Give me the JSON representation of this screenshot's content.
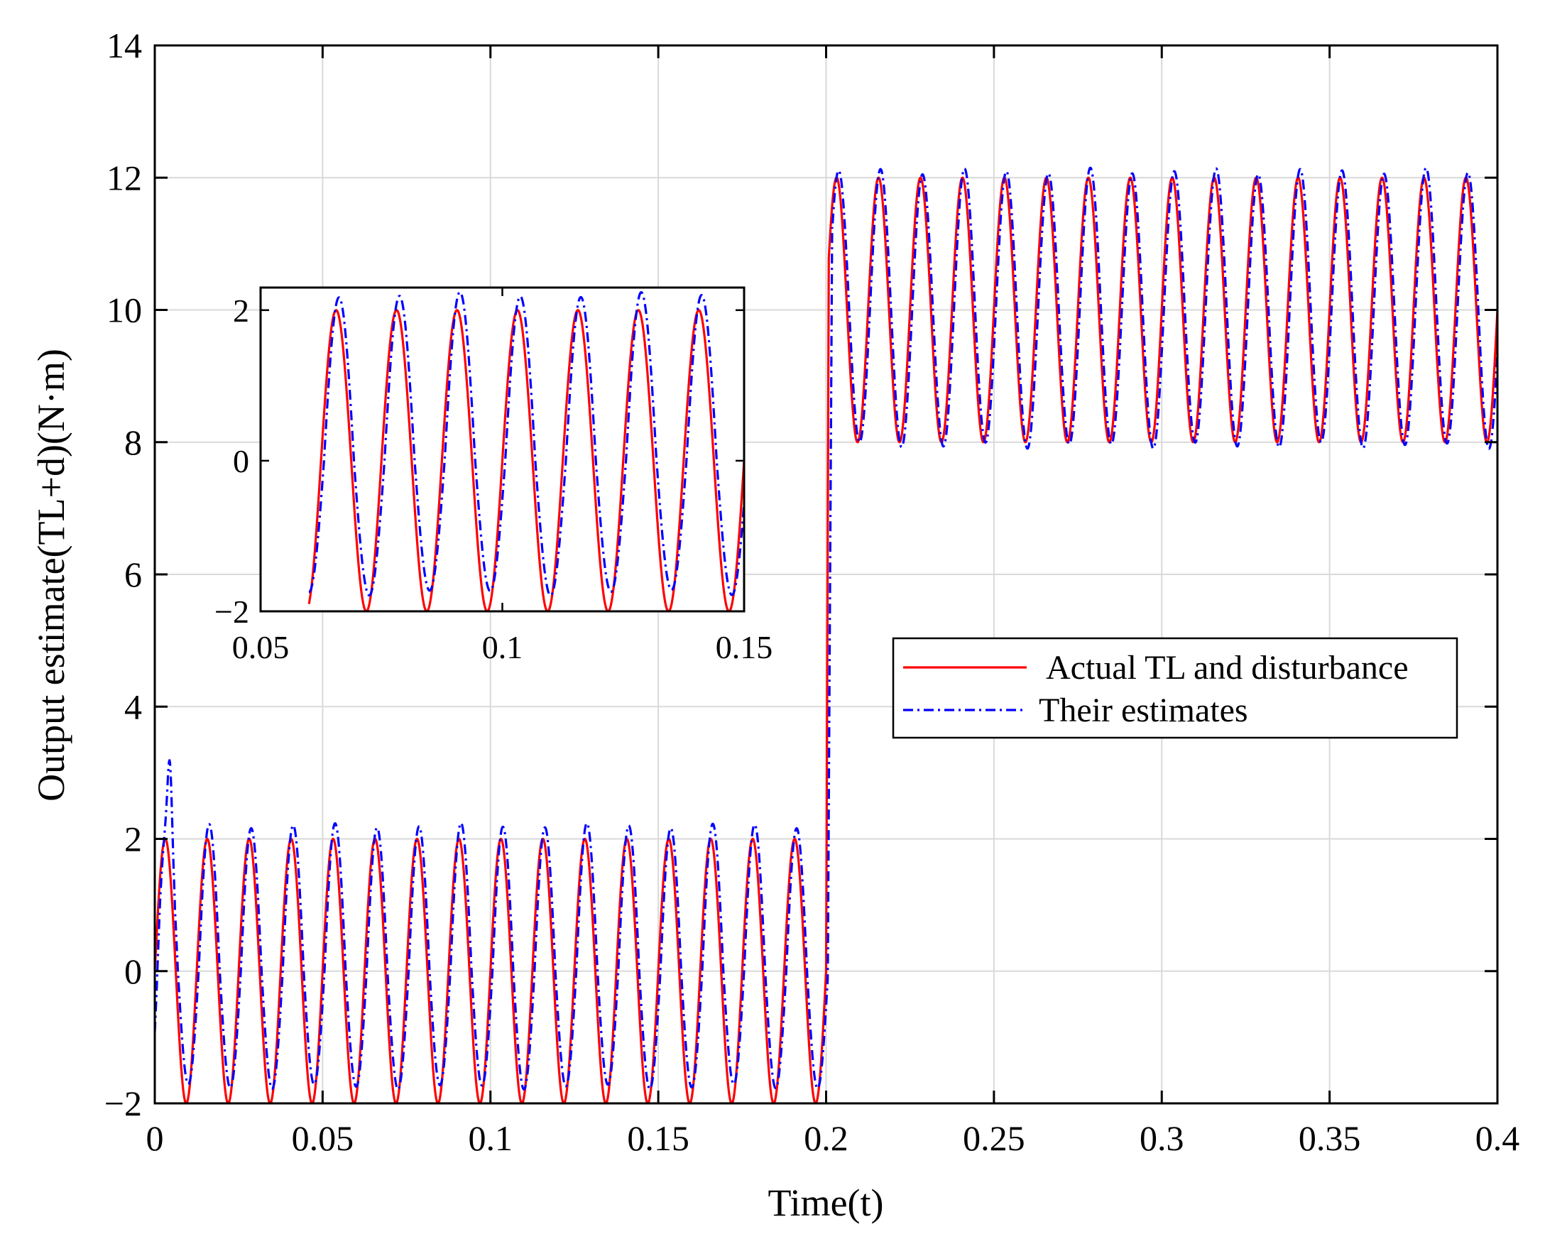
{
  "chart_data": [
    {
      "id": "main",
      "type": "line",
      "xlabel": "Time(t)",
      "ylabel": "Output estimate(TL+d)(N·m)",
      "xlim": [
        0,
        0.4
      ],
      "ylim": [
        -2,
        14
      ],
      "xticks": [
        0,
        0.05,
        0.1,
        0.15,
        0.2,
        0.25,
        0.3,
        0.35,
        0.4
      ],
      "xtick_labels": [
        "0",
        "0.05",
        "0.1",
        "0.15",
        "0.2",
        "0.25",
        "0.3",
        "0.35",
        "0.4"
      ],
      "yticks": [
        -2,
        0,
        2,
        4,
        6,
        8,
        10,
        12,
        14
      ],
      "ytick_labels": [
        "−2",
        "0",
        "2",
        "4",
        "6",
        "8",
        "10",
        "12",
        "14"
      ],
      "grid": true,
      "legend_position": "center-right",
      "step_time": 0.2,
      "series": [
        {
          "name": "Actual TL and disturbance",
          "style": "solid",
          "color": "#ff0000",
          "description_values": {
            "before_step_amplitude": 2,
            "before_step_offset": 0,
            "after_step_amplitude": 2,
            "after_step_offset": 10,
            "period": 0.0125
          }
        },
        {
          "name": "Their estimates",
          "style": "dash-dot",
          "color": "#0000ff",
          "description_values": {
            "before_step_peak": 2.2,
            "before_step_trough": -1.7,
            "after_step_peak": 12.1,
            "after_step_trough": 7.95,
            "initial_spike": 3.0,
            "period": 0.0125
          }
        }
      ]
    },
    {
      "id": "inset",
      "type": "line",
      "xlim": [
        0.05,
        0.15
      ],
      "ylim": [
        -2,
        2.3
      ],
      "xticks": [
        0.05,
        0.1,
        0.15
      ],
      "xtick_labels": [
        "0.05",
        "0.1",
        "0.15"
      ],
      "yticks": [
        -2,
        0,
        2
      ],
      "ytick_labels": [
        "−2",
        "0",
        "2"
      ],
      "grid": false,
      "x_start": 0.06
    }
  ],
  "colors": {
    "actual": "#ff0000",
    "estimate": "#0000ff",
    "grid": "#d9d9d9"
  }
}
